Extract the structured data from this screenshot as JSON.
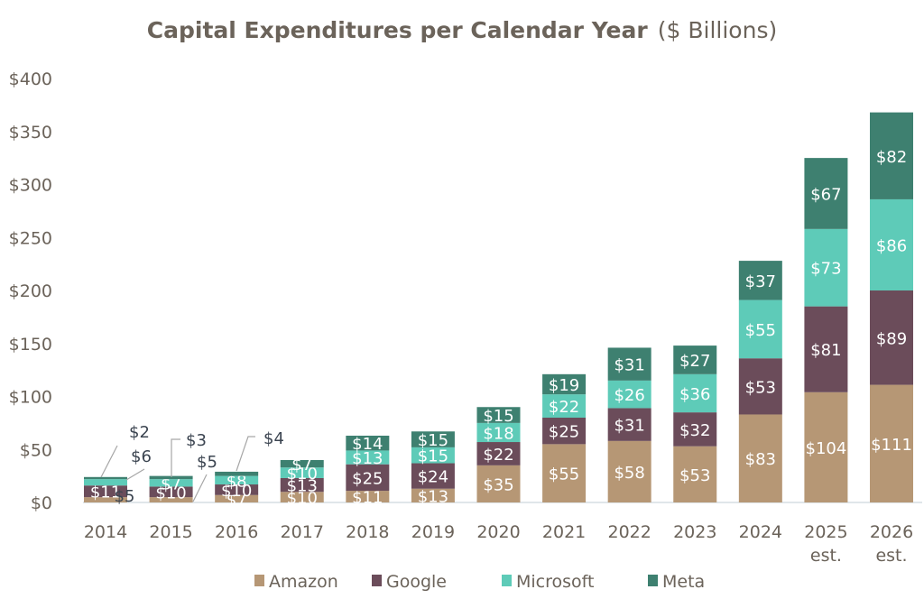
{
  "chart_data": {
    "type": "bar",
    "stacked": true,
    "title": "Capital Expenditures per Calendar Year",
    "title_suffix": "($ Billions)",
    "xlabel": "",
    "ylabel": "",
    "ylim": [
      0,
      400
    ],
    "yticks": [
      0,
      50,
      100,
      150,
      200,
      250,
      300,
      350,
      400
    ],
    "ytick_labels": [
      "$0",
      "$50",
      "$100",
      "$150",
      "$200",
      "$250",
      "$300",
      "$350",
      "$400"
    ],
    "grid": false,
    "legend_position": "bottom",
    "categories": [
      [
        "2014"
      ],
      [
        "2015"
      ],
      [
        "2016"
      ],
      [
        "2017"
      ],
      [
        "2018"
      ],
      [
        "2019"
      ],
      [
        "2020"
      ],
      [
        "2021"
      ],
      [
        "2022"
      ],
      [
        "2023"
      ],
      [
        "2024"
      ],
      [
        "2025",
        "est."
      ],
      [
        "2026",
        "est."
      ]
    ],
    "series": [
      {
        "name": "Amazon",
        "color": "#b69775",
        "values": [
          5,
          5,
          7,
          10,
          11,
          13,
          35,
          55,
          58,
          53,
          83,
          104,
          111
        ]
      },
      {
        "name": "Google",
        "color": "#6b4c5a",
        "values": [
          11,
          10,
          10,
          13,
          25,
          24,
          22,
          25,
          31,
          32,
          53,
          81,
          89
        ]
      },
      {
        "name": "Microsoft",
        "color": "#5ecbb8",
        "values": [
          6,
          7,
          8,
          10,
          13,
          15,
          18,
          22,
          26,
          36,
          55,
          73,
          86
        ]
      },
      {
        "name": "Meta",
        "color": "#3e8070",
        "values": [
          2,
          3,
          4,
          7,
          14,
          15,
          15,
          19,
          31,
          27,
          37,
          67,
          82
        ]
      }
    ],
    "value_prefix": "$",
    "callouts": [
      {
        "category_index": 0,
        "series": "Meta",
        "label": "$2"
      },
      {
        "category_index": 0,
        "series": "Microsoft",
        "label": "$6"
      },
      {
        "category_index": 0,
        "series": "Amazon",
        "label": "$5"
      },
      {
        "category_index": 1,
        "series": "Meta",
        "label": "$3"
      },
      {
        "category_index": 1,
        "series": "Amazon",
        "label": "$5"
      },
      {
        "category_index": 2,
        "series": "Meta",
        "label": "$4"
      }
    ]
  }
}
